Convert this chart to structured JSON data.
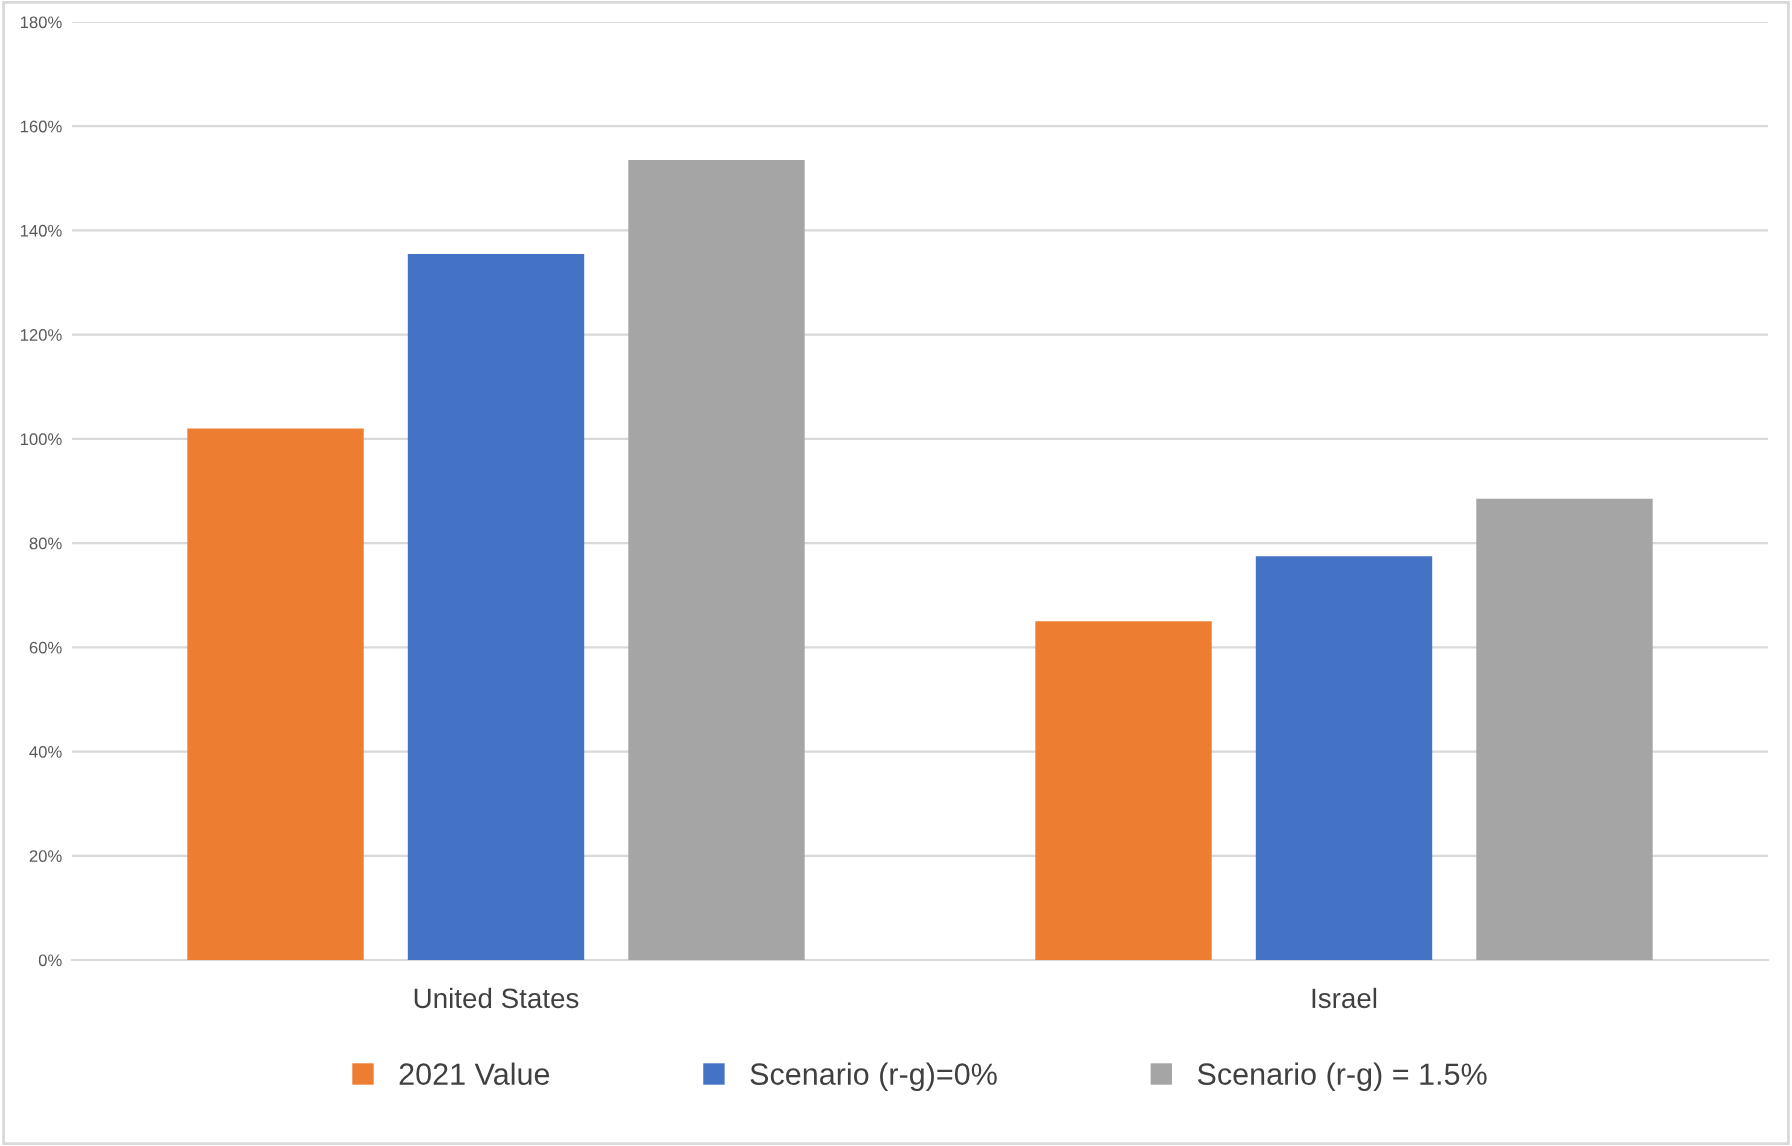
{
  "chart_data": {
    "type": "bar",
    "categories": [
      "United States",
      "Israel"
    ],
    "series": [
      {
        "name": "2021 Value",
        "color": "#ed7d31",
        "values": [
          102,
          65
        ]
      },
      {
        "name": "Scenario (r-g)=0%",
        "color": "#4472c4",
        "values": [
          135.5,
          77.5
        ]
      },
      {
        "name": "Scenario (r-g) = 1.5%",
        "color": "#a5a5a5",
        "values": [
          153.5,
          88.5
        ]
      }
    ],
    "ylim": [
      0,
      180
    ],
    "yticks": [
      {
        "value": 0,
        "label": "0%"
      },
      {
        "value": 20,
        "label": "20%"
      },
      {
        "value": 40,
        "label": "40%"
      },
      {
        "value": 60,
        "label": "60%"
      },
      {
        "value": 80,
        "label": "80%"
      },
      {
        "value": 100,
        "label": "100%"
      },
      {
        "value": 120,
        "label": "120%"
      },
      {
        "value": 140,
        "label": "140%"
      },
      {
        "value": 160,
        "label": "160%"
      },
      {
        "value": 180,
        "label": "180%"
      }
    ],
    "grid": "y",
    "legend": "bottom"
  }
}
